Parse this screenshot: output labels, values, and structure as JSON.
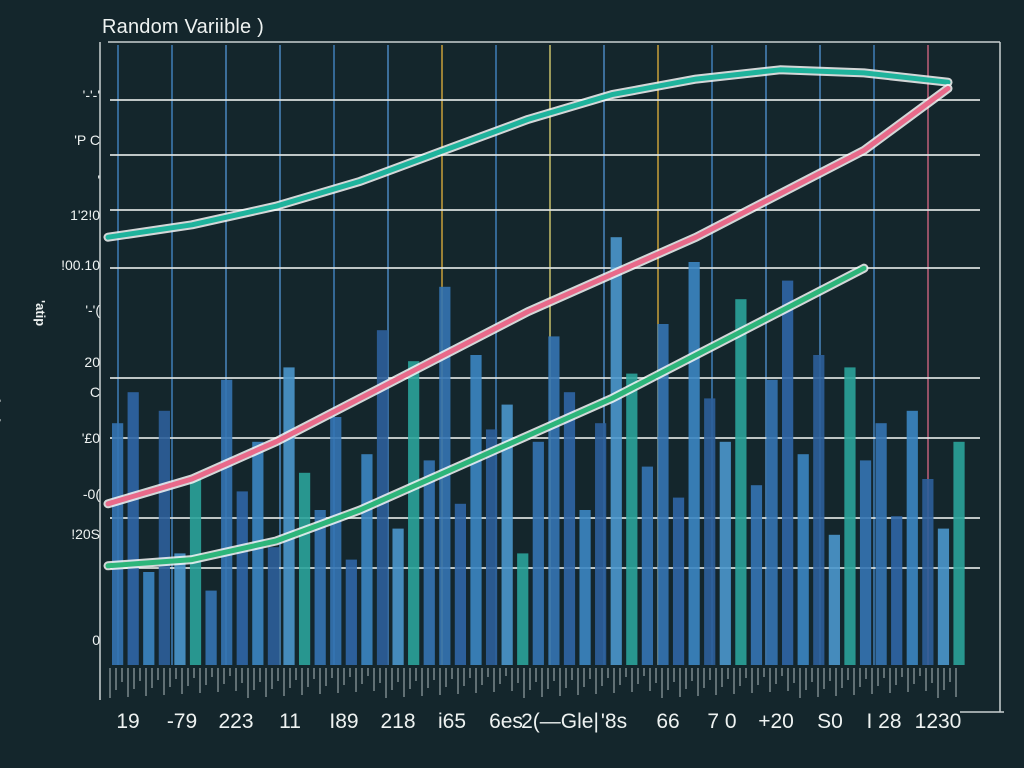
{
  "chart_data": {
    "type": "bar",
    "title": "Random Variible )",
    "ylabel": "ooalnd",
    "ylabel_secondary": "'atip",
    "grid": true,
    "ylim": [
      0,
      10
    ],
    "y_tick_labels": [
      "'-'-'",
      "'P C",
      "'",
      "1'2!0",
      "!00.10",
      "'-'(",
      "20",
      "C",
      "'£0",
      "-0(",
      "!20S",
      "0"
    ],
    "x_tick_labels": [
      "19",
      "-79",
      "223",
      "11",
      "I89",
      "218",
      "i65",
      "6es",
      "2(—Gle|",
      "'8s",
      "66",
      "7 0",
      "+20",
      "S0",
      "I 28",
      "1230"
    ],
    "bar_values": [
      3.9,
      4.4,
      1.5,
      4.1,
      1.8,
      3.0,
      1.2,
      4.6,
      2.8,
      3.6,
      1.9,
      4.8,
      3.1,
      2.5,
      4.0,
      1.7,
      3.4,
      5.4,
      2.2,
      4.9,
      3.3,
      6.1,
      2.6,
      5.0,
      3.8,
      4.2,
      1.8,
      3.6,
      5.3,
      4.4,
      2.5,
      3.9,
      6.9,
      4.7,
      3.2,
      5.5,
      2.7,
      6.5,
      4.3,
      3.6,
      5.9,
      2.9,
      4.6,
      6.2,
      3.4,
      5.0,
      2.1,
      4.8,
      3.3,
      3.9,
      2.4,
      4.1,
      3.0,
      2.2,
      3.6
    ],
    "series": [
      {
        "name": "",
        "color": "#1fb39c",
        "points": [
          [
            0,
            6.9
          ],
          [
            1,
            7.1
          ],
          [
            2,
            7.4
          ],
          [
            3,
            7.8
          ],
          [
            4,
            8.3
          ],
          [
            5,
            8.8
          ],
          [
            6,
            9.2
          ],
          [
            7,
            9.45
          ],
          [
            8,
            9.6
          ],
          [
            9,
            9.55
          ],
          [
            10,
            9.4
          ]
        ]
      },
      {
        "name": "",
        "color": "#e86a8a",
        "points": [
          [
            0,
            2.6
          ],
          [
            1,
            3.0
          ],
          [
            2,
            3.6
          ],
          [
            3,
            4.3
          ],
          [
            4,
            5.0
          ],
          [
            5,
            5.7
          ],
          [
            6,
            6.3
          ],
          [
            7,
            6.9
          ],
          [
            8,
            7.6
          ],
          [
            9,
            8.3
          ],
          [
            10,
            9.3
          ]
        ]
      },
      {
        "name": "",
        "color": "#2db57a",
        "points": [
          [
            0,
            1.6
          ],
          [
            1,
            1.7
          ],
          [
            2,
            2.0
          ],
          [
            3,
            2.5
          ],
          [
            4,
            3.1
          ],
          [
            5,
            3.7
          ],
          [
            6,
            4.3
          ],
          [
            7,
            5.0
          ],
          [
            8,
            5.7
          ],
          [
            9,
            6.4
          ]
        ]
      }
    ]
  }
}
